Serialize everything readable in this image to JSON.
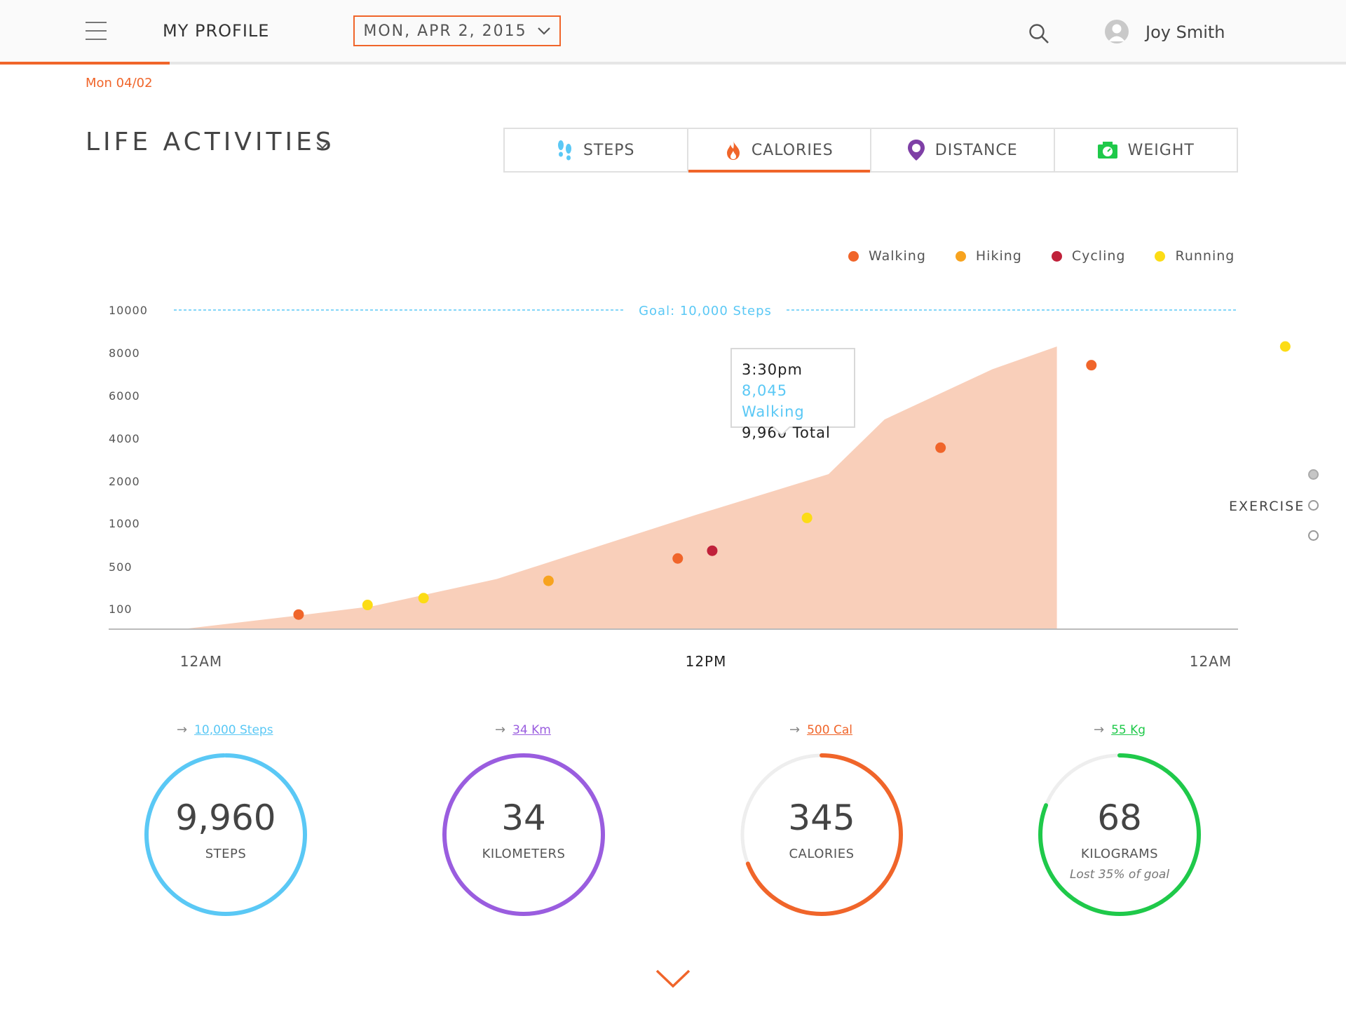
{
  "header": {
    "nav_title": "MY PROFILE",
    "date_picker": "MON, APR 2, 2015",
    "user_name": "Joy Smith"
  },
  "date_short": "Mon 04/02",
  "section": {
    "title": "LIFE ACTIVITIES"
  },
  "tabs": [
    {
      "label": "STEPS",
      "icon": "footsteps-icon",
      "color": "#5ac8f5",
      "active": false
    },
    {
      "label": "CALORIES",
      "icon": "flame-icon",
      "color": "#f0652a",
      "active": true
    },
    {
      "label": "DISTANCE",
      "icon": "location-pin-icon",
      "color": "#7e3fa6",
      "active": false
    },
    {
      "label": "WEIGHT",
      "icon": "scale-icon",
      "color": "#1fc94a",
      "active": false
    }
  ],
  "legend": [
    {
      "name": "Walking",
      "color": "#f0652a"
    },
    {
      "name": "Hiking",
      "color": "#f7a31f"
    },
    {
      "name": "Cycling",
      "color": "#c0213a"
    },
    {
      "name": "Running",
      "color": "#fcdc15"
    }
  ],
  "chart_data": {
    "type": "area",
    "y_ticks": [
      "10000",
      "8000",
      "6000",
      "4000",
      "2000",
      "1000",
      "500",
      "100"
    ],
    "x_ticks": [
      "12AM",
      "12PM",
      "12AM"
    ],
    "goal": {
      "label": "Goal: 10,000 Steps",
      "value": 10000
    },
    "area": {
      "hours": [
        0,
        2.7,
        4.4,
        7.3,
        11.9,
        15.0,
        16.3,
        18.8,
        20.3,
        20.3
      ],
      "levels": [
        0,
        0.3,
        0.5,
        1.1,
        2.5,
        3.4,
        4.6,
        5.7,
        6.2,
        0
      ]
    },
    "points": [
      {
        "hour": 2.7,
        "level": 0.32,
        "activity": "Walking"
      },
      {
        "hour": 4.3,
        "level": 0.53,
        "activity": "Running"
      },
      {
        "hour": 5.6,
        "level": 0.68,
        "activity": "Running"
      },
      {
        "hour": 8.5,
        "level": 1.06,
        "activity": "Hiking"
      },
      {
        "hour": 11.5,
        "level": 1.55,
        "activity": "Walking"
      },
      {
        "hour": 12.3,
        "level": 1.72,
        "activity": "Cycling"
      },
      {
        "hour": 14.5,
        "level": 2.44,
        "activity": "Running"
      },
      {
        "hour": 17.6,
        "level": 3.98,
        "activity": "Walking"
      },
      {
        "hour": 21.1,
        "level": 5.79,
        "activity": "Walking"
      },
      {
        "hour": 25.6,
        "level": 6.2,
        "activity": "Running"
      }
    ],
    "tooltip": {
      "time": "3:30pm",
      "walking": "8,045 Walking",
      "total": "9,960 Total"
    }
  },
  "side_nav": {
    "label": "EXERCISE",
    "active_index": 0
  },
  "stats": [
    {
      "goal": "10,000 Steps",
      "value": "9,960",
      "unit": "STEPS",
      "color": "#5ac8f5",
      "progress": 0.996,
      "note": ""
    },
    {
      "goal": "34 Km",
      "value": "34",
      "unit": "KILOMETERS",
      "color": "#9a5ddf",
      "progress": 1.0,
      "note": ""
    },
    {
      "goal": "500 Cal",
      "value": "345",
      "unit": "CALORIES",
      "color": "#f0652a",
      "progress": 0.69,
      "note": ""
    },
    {
      "goal": "55 Kg",
      "value": "68",
      "unit": "KILOGRAMS",
      "color": "#1fc94a",
      "progress": 0.81,
      "note": "Lost 35% of goal"
    }
  ]
}
